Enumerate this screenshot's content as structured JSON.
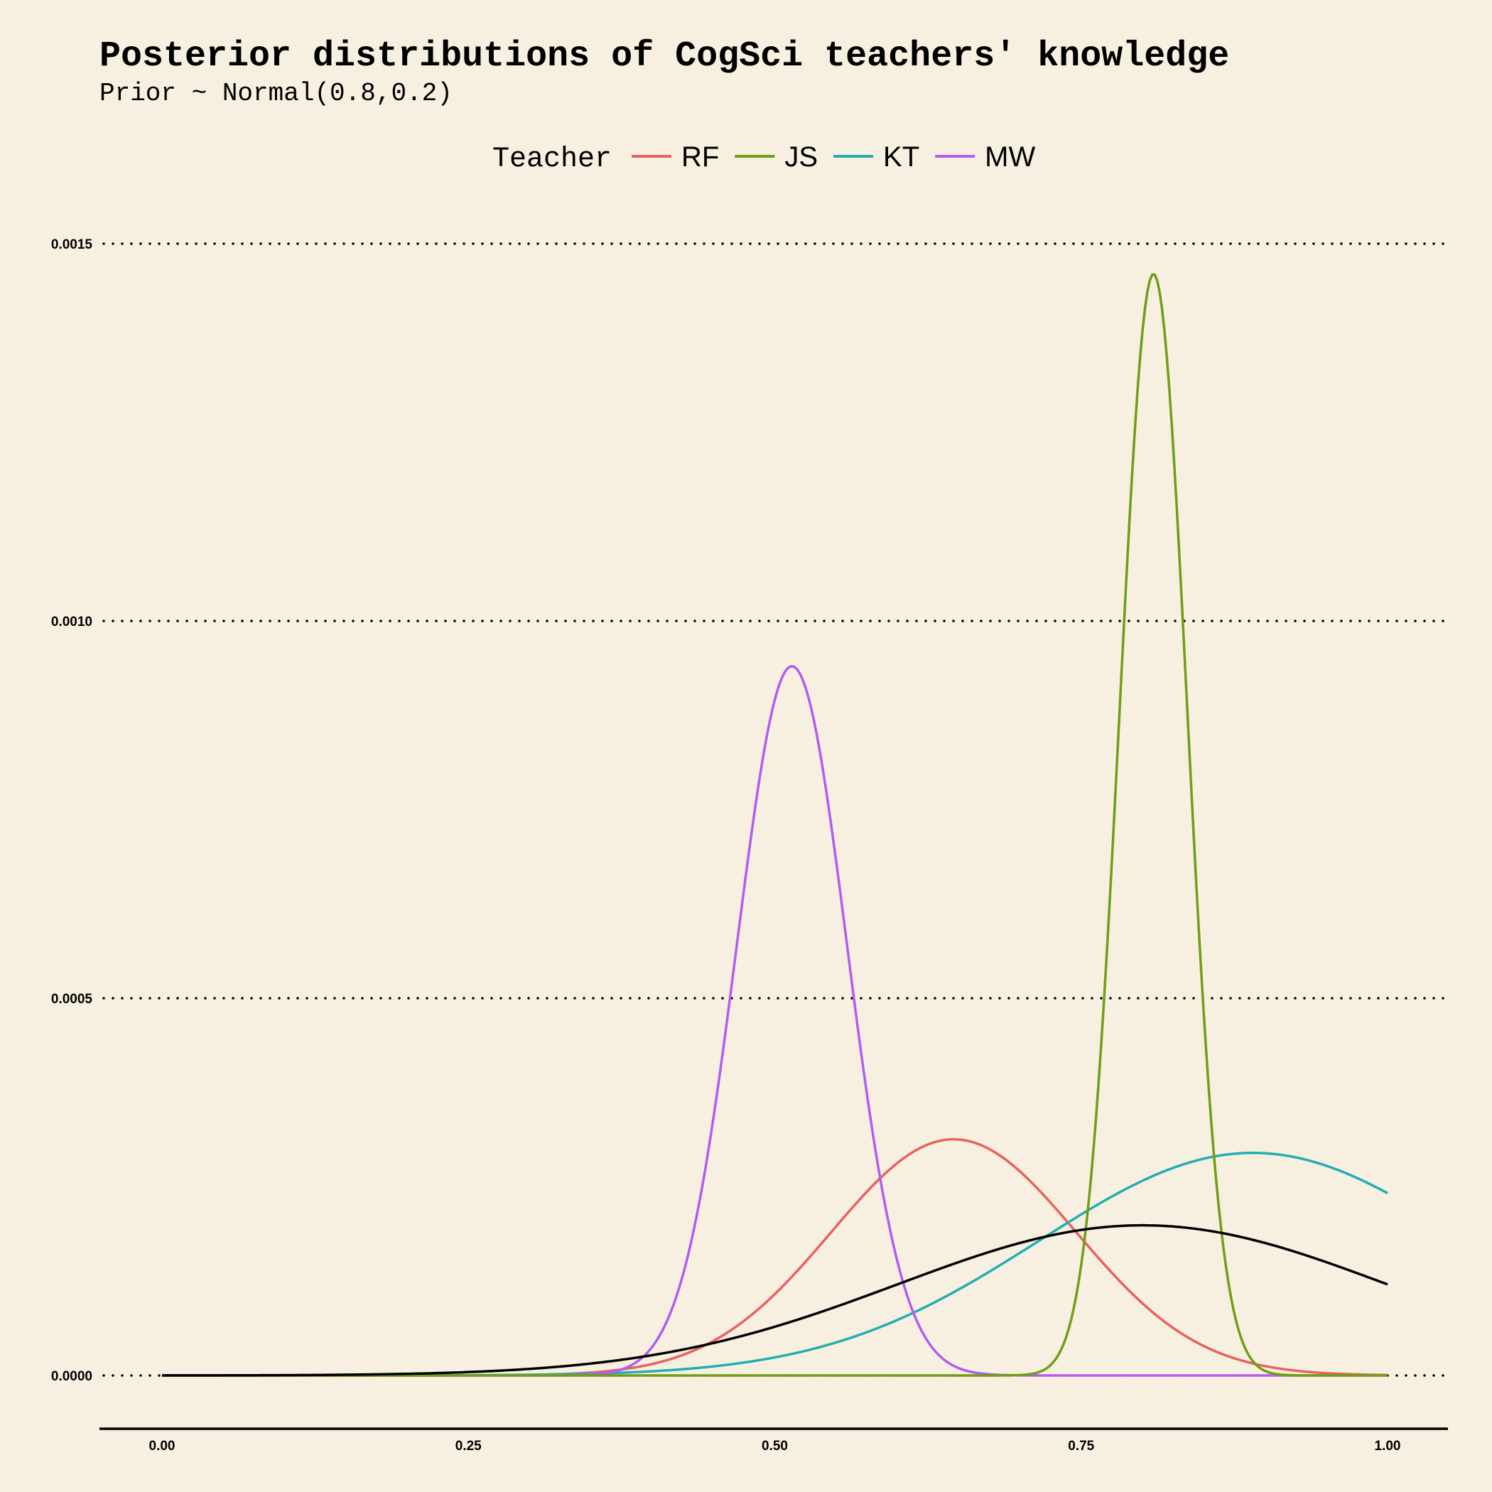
{
  "chart_data": {
    "type": "line",
    "title": "Posterior distributions of CogSci teachers' knowledge",
    "subtitle": "Prior ~ Normal(0.8,0.2)",
    "xlabel": "",
    "ylabel": "",
    "xlim": [
      0,
      1
    ],
    "ylim": [
      0,
      0.0015
    ],
    "x_ticks": [
      0,
      0.25,
      0.5,
      0.75,
      1
    ],
    "x_tick_labels": [
      "0.00",
      "0.25",
      "0.50",
      "0.75",
      "1.00"
    ],
    "y_ticks": [
      0,
      0.0005,
      0.001,
      0.0015
    ],
    "y_tick_labels": [
      "0.0000",
      "0.0005",
      "0.0010",
      "0.0015"
    ],
    "grid": "horizontal-dotted",
    "legend": {
      "title": "Teacher",
      "position": "top"
    },
    "series": [
      {
        "name": "RF",
        "color": "#e8625e",
        "curve": "gaussian",
        "mean": 0.646,
        "sd": 0.1,
        "peak": 0.000313,
        "sample_x": [
          0.0,
          0.25,
          0.5,
          0.646,
          0.75,
          1.0
        ],
        "sample_y": [
          0.0,
          4.7e-07,
          0.000106,
          0.000313,
          0.000181,
          6e-07
        ]
      },
      {
        "name": "JS",
        "color": "#6e9f14",
        "curve": "gaussian",
        "mean": 0.809,
        "sd": 0.0275,
        "peak": 0.00146,
        "sample_x": [
          0.0,
          0.7,
          0.75,
          0.809,
          0.85,
          1.0
        ],
        "sample_y": [
          0.0,
          5.6e-06,
          0.000147,
          0.00146,
          0.000479,
          0.0
        ]
      },
      {
        "name": "KT",
        "color": "#22aeb0",
        "curve": "gaussian",
        "mean": 0.89,
        "sd": 0.174,
        "peak": 0.000295,
        "sample_x": [
          0.0,
          0.25,
          0.5,
          0.75,
          0.89,
          1.0
        ],
        "sample_y": [
          0.0,
          3.5e-06,
          3.96e-05,
          0.000179,
          0.000295,
          0.000253
        ]
      },
      {
        "name": "MW",
        "color": "#b35cf0",
        "curve": "gaussian",
        "mean": 0.514,
        "sd": 0.045,
        "peak": 0.00094,
        "sample_x": [
          0.0,
          0.4,
          0.45,
          0.514,
          0.6,
          1.0
        ],
        "sample_y": [
          0.0,
          3.8e-06,
          0.000344,
          0.00094,
          0.000152,
          0.0
        ]
      },
      {
        "name": "",
        "color": "#000000",
        "curve": "gaussian",
        "mean": 0.8,
        "sd": 0.2,
        "peak": 0.000199,
        "sample_x": [
          0.0,
          0.25,
          0.5,
          0.8,
          1.0
        ],
        "sample_y": [
          6.7e-06,
          4.4e-06,
          6.46e-05,
          0.000199,
          0.000121
        ]
      }
    ]
  }
}
